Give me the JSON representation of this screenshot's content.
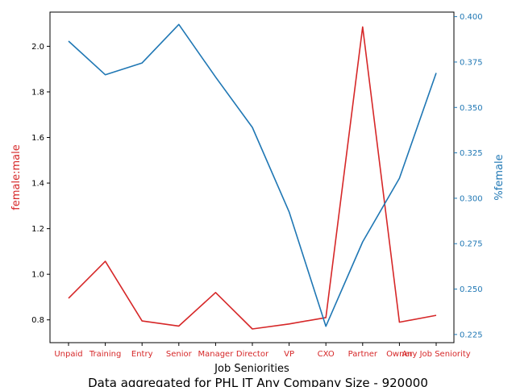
{
  "chart_data": {
    "type": "line",
    "categories": [
      "Unpaid",
      "Training",
      "Entry",
      "Senior",
      "Manager",
      "Director",
      "VP",
      "CXO",
      "Partner",
      "Owner",
      "Any Job Seniority"
    ],
    "xlabel": "Job Seniorities",
    "caption": "Data aggregated for PHL IT Any Company Size - 920000",
    "left_axis": {
      "label": "female:male",
      "color": "#d62728",
      "ylim": [
        0.7,
        2.15
      ],
      "ticks": [
        "0.8",
        "1.0",
        "1.2",
        "1.4",
        "1.6",
        "1.8",
        "2.0"
      ]
    },
    "right_axis": {
      "label": "%female",
      "color": "#1f77b4",
      "ylim": [
        0.2205,
        0.4025
      ],
      "ticks": [
        "0.225",
        "0.250",
        "0.275",
        "0.300",
        "0.325",
        "0.350",
        "0.375",
        "0.400"
      ]
    },
    "series": [
      {
        "axis": "left",
        "color": "#d62728",
        "values": [
          0.895,
          1.057,
          0.795,
          0.773,
          0.92,
          0.76,
          0.782,
          0.81,
          2.085,
          0.79,
          0.82
        ]
      },
      {
        "axis": "right",
        "color": "#1f77b4",
        "values": [
          0.3865,
          0.368,
          0.3745,
          0.3957,
          0.3667,
          0.339,
          0.2925,
          0.2295,
          0.276,
          0.311,
          0.369
        ]
      }
    ]
  }
}
